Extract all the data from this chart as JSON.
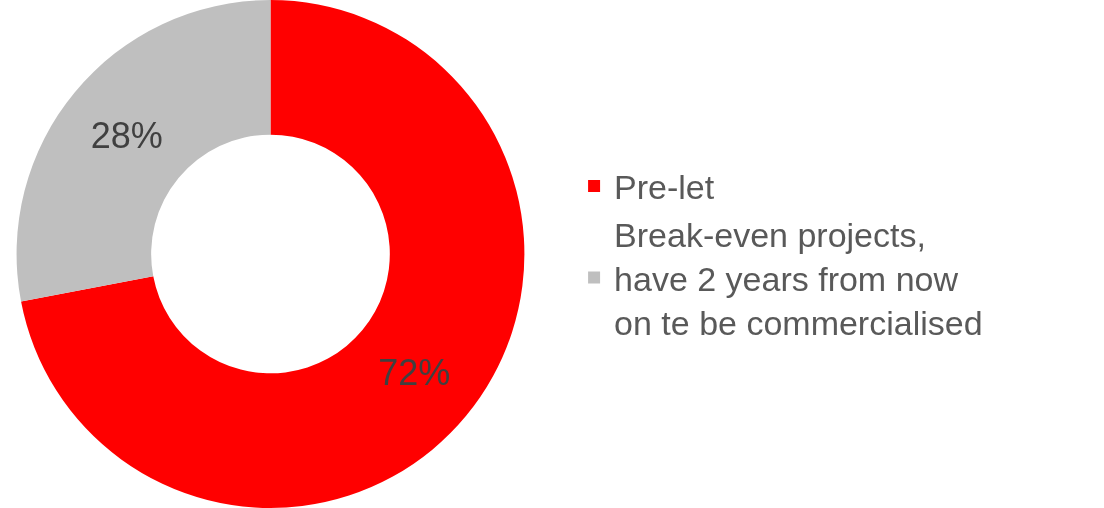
{
  "chart_data": {
    "type": "donut",
    "categories": [
      "Pre-let",
      "Break-even projects,\nhave 2 years from now\non te be commercialised"
    ],
    "values": [
      72,
      28
    ],
    "colors": [
      "#ff0000",
      "#bfbfbf"
    ],
    "value_labels": [
      "72%",
      "28%"
    ],
    "legend": "right"
  }
}
